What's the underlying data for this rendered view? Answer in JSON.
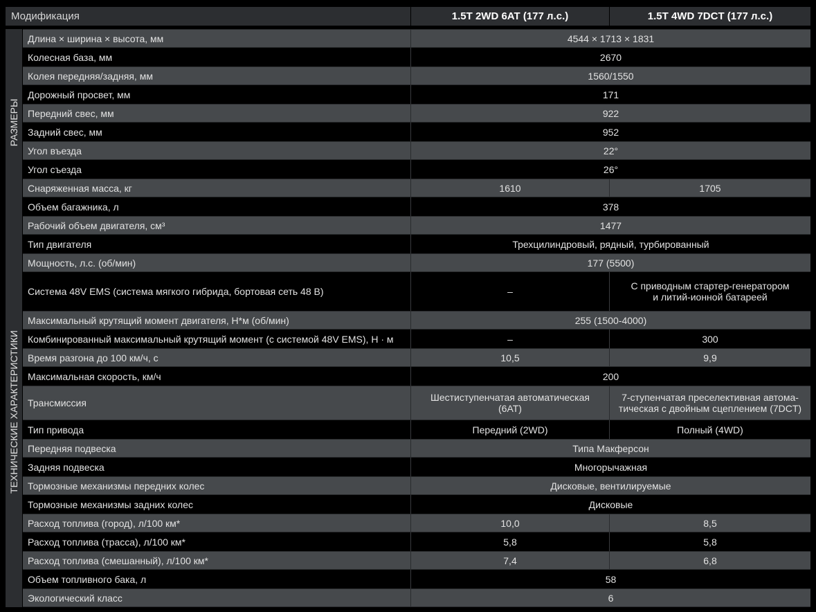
{
  "header": {
    "label": "Модификация",
    "columns": [
      "1.5T 2WD 6AT (177 л.с.)",
      "1.5T 4WD 7DCT (177 л.с.)"
    ]
  },
  "sections": [
    {
      "title": "РАЗМЕРЫ",
      "rows": [
        {
          "label": "Длина × ширина × высота, мм",
          "values": [
            "4544  × 1713 × 1831"
          ]
        },
        {
          "label": "Колесная база, мм",
          "values": [
            "2670"
          ]
        },
        {
          "label": "Колея передняя/задняя, мм",
          "values": [
            "1560/1550"
          ]
        },
        {
          "label": "Дорожный просвет, мм",
          "values": [
            "171"
          ]
        },
        {
          "label": "Передний свес, мм",
          "values": [
            "922"
          ]
        },
        {
          "label": "Задний свес, мм",
          "values": [
            "952"
          ]
        },
        {
          "label": "Угол въезда",
          "values": [
            "22°"
          ]
        },
        {
          "label": "Угол съезда",
          "values": [
            "26°"
          ]
        },
        {
          "label": "Снаряженная масса, кг",
          "values": [
            "1610",
            "1705"
          ]
        },
        {
          "label": "Объем багажника, л",
          "values": [
            "378"
          ]
        }
      ]
    },
    {
      "title": "ТЕХНИЧЕСКИЕ ХАРАКТЕРИСТИКИ",
      "rows": [
        {
          "label": "Рабочий объем двигателя, см³",
          "values": [
            "1477"
          ]
        },
        {
          "label": "Тип двигателя",
          "values": [
            "Трехцилиндровый, рядный, турбированный"
          ]
        },
        {
          "label": "Мощность, л.с. (об/мин)",
          "values": [
            "177 (5500)"
          ]
        },
        {
          "label": "Система 48V EMS (система мягкого гибрида, бортовая сеть 48 В)",
          "values": [
            "–",
            "С приводным стартер-генератором\nи литий-ионной батареей"
          ],
          "tall": 1
        },
        {
          "label": "Максимальный крутящий момент двигателя, Н*м (об/мин)",
          "values": [
            "255 (1500-4000)"
          ]
        },
        {
          "label": "Комбинированный максимальный крутящий момент (с системой 48V EMS), Н · м",
          "values": [
            "–",
            "300"
          ]
        },
        {
          "label": "Время разгона до 100 км/ч, с",
          "values": [
            "10,5",
            "9,9"
          ]
        },
        {
          "label": "Максимальная скорость, км/ч",
          "values": [
            "200"
          ]
        },
        {
          "label": "Трансмиссия",
          "values": [
            "Шестиступенчатая автоматическая\n(6AT)",
            "7-ступенчатая преселективная автома-\nтическая с двойным сцеплением (7DCT)"
          ],
          "tall": 2
        },
        {
          "label": "Тип привода",
          "values": [
            "Передний (2WD)",
            "Полный (4WD)"
          ]
        },
        {
          "label": "Передняя подвеска",
          "values": [
            "Типа Макферсон"
          ]
        },
        {
          "label": "Задняя подвеска",
          "values": [
            "Многорычажная"
          ]
        },
        {
          "label": "Тормозные механизмы передних колес",
          "values": [
            "Дисковые, вентилируемые"
          ]
        },
        {
          "label": "Тормозные механизмы задних колес",
          "values": [
            "Дисковые"
          ]
        },
        {
          "label": "Расход топлива (город), л/100 км*",
          "values": [
            "10,0",
            "8,5"
          ]
        },
        {
          "label": "Расход топлива (трасса), л/100 км*",
          "values": [
            "5,8",
            "5,8"
          ]
        },
        {
          "label": "Расход топлива (смешанный), л/100 км*",
          "values": [
            "7,4",
            "6,8"
          ]
        },
        {
          "label": "Объем топливного бака, л",
          "values": [
            "58"
          ]
        },
        {
          "label": "Экологический класс",
          "values": [
            "6"
          ]
        }
      ]
    }
  ]
}
